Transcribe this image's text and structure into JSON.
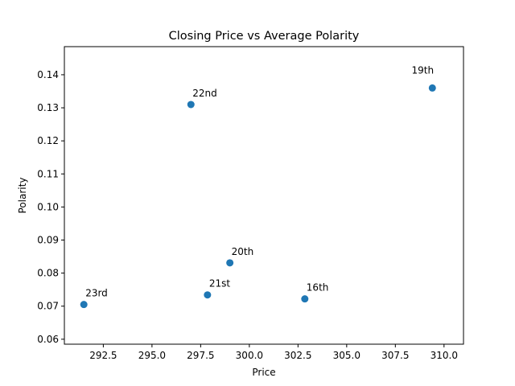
{
  "chart_data": {
    "type": "scatter",
    "title": "Closing Price vs Average Polarity",
    "xlabel": "Price",
    "ylabel": "Polarity",
    "xlim": [
      290.5,
      311.0
    ],
    "ylim": [
      0.0585,
      0.1485
    ],
    "xticks": [
      292.5,
      295.0,
      297.5,
      300.0,
      302.5,
      305.0,
      307.5,
      310.0
    ],
    "xtick_labels": [
      "292.5",
      "295.0",
      "297.5",
      "300.0",
      "302.5",
      "305.0",
      "307.5",
      "310.0"
    ],
    "yticks": [
      0.06,
      0.07,
      0.08,
      0.09,
      0.1,
      0.11,
      0.12,
      0.13,
      0.14
    ],
    "ytick_labels": [
      "0.06",
      "0.07",
      "0.08",
      "0.09",
      "0.10",
      "0.11",
      "0.12",
      "0.13",
      "0.14"
    ],
    "grid": false,
    "marker_color": "#1f77b4",
    "points": [
      {
        "label": "23rd",
        "x": 291.5,
        "y": 0.0705
      },
      {
        "label": "22nd",
        "x": 297.0,
        "y": 0.131
      },
      {
        "label": "21st",
        "x": 297.85,
        "y": 0.0734
      },
      {
        "label": "20th",
        "x": 299.0,
        "y": 0.0831
      },
      {
        "label": "16th",
        "x": 302.85,
        "y": 0.0722
      },
      {
        "label": "19th",
        "x": 309.4,
        "y": 0.136
      }
    ]
  }
}
